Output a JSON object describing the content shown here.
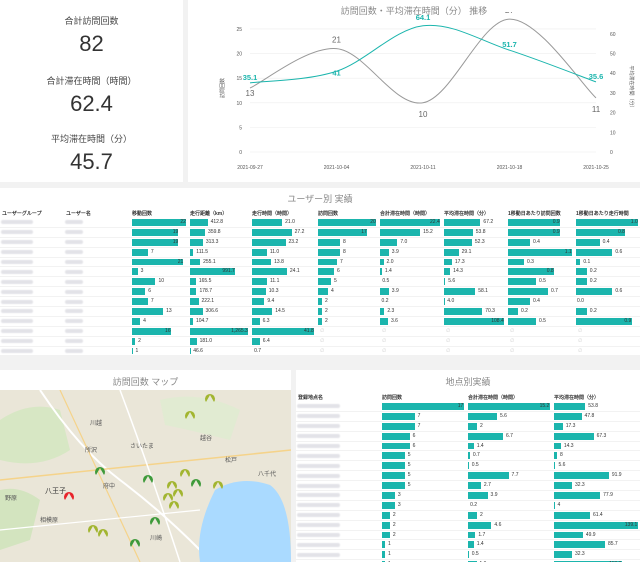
{
  "kpis": [
    {
      "label": "合計訪問回数",
      "value": "82"
    },
    {
      "label": "合計滞在時間（時間）",
      "value": "62.4"
    },
    {
      "label": "平均滞在時間（分）",
      "value": "45.7"
    }
  ],
  "trend_chart": {
    "title": "訪問回数・平均滞在時間（分） 推移",
    "y_left_label": "訪問回数",
    "y_right_label": "平均滞在時間（分）",
    "legend": [
      "訪問回数",
      "平均滞在時間（分）"
    ],
    "colors": {
      "visits": "#999999",
      "stay": "#1bb5ad"
    }
  },
  "chart_data": {
    "type": "line",
    "x": [
      "2021-09-27",
      "2021-10-04",
      "2021-10-11",
      "2021-10-18",
      "2021-10-25"
    ],
    "series": [
      {
        "name": "訪問回数",
        "values": [
          13,
          21,
          10,
          27,
          11
        ],
        "axis": "left"
      },
      {
        "name": "平均滞在時間（分）",
        "values": [
          35.1,
          41.0,
          64.1,
          51.7,
          35.6
        ],
        "axis": "right"
      }
    ],
    "y_left_ticks": [
      0,
      5,
      10,
      15,
      20,
      25
    ],
    "y_left_range": [
      0,
      26
    ],
    "y_right_ticks": [
      0,
      10,
      20,
      30,
      40,
      50,
      60
    ],
    "y_right_range": [
      0,
      65
    ],
    "legend_position": "bottom-center",
    "grid": true
  },
  "user_table": {
    "title": "ユーザー別 実績",
    "headers": [
      "ユーザーグループ",
      "ユーザー名",
      "移動回数",
      "走行距離（km）",
      "走行時間（時間）",
      "訪問回数",
      "合計滞在時間（時間）",
      "平均滞在時間（分）",
      "1移動日あたり訪問回数",
      "1移動日あたり走行時間"
    ],
    "rows": [
      {
        "c": [
          22,
          412.8,
          21.0,
          20,
          22.4,
          67.2,
          0.9,
          1.0
        ]
      },
      {
        "c": [
          19,
          359.8,
          27.2,
          17,
          15.2,
          53.8,
          0.9,
          0.8
        ]
      },
      {
        "c": [
          19,
          313.3,
          23.2,
          8,
          7.0,
          52.3,
          0.4,
          0.4
        ]
      },
      {
        "c": [
          7,
          111.5,
          11.0,
          8,
          3.9,
          29.1,
          1.1,
          0.6
        ]
      },
      {
        "c": [
          21,
          255.1,
          13.8,
          7,
          2.0,
          17.3,
          0.3,
          0.1
        ]
      },
      {
        "c": [
          3,
          991.7,
          24.1,
          6,
          1.4,
          14.3,
          0.8,
          0.2
        ]
      },
      {
        "c": [
          10,
          165.5,
          11.1,
          5,
          0.5,
          5.6,
          0.5,
          0.2
        ]
      },
      {
        "c": [
          6,
          178.7,
          10.3,
          4,
          3.9,
          58.1,
          0.7,
          0.6
        ]
      },
      {
        "c": [
          7,
          222.1,
          9.4,
          2,
          0.2,
          4.0,
          0.4,
          0.0
        ]
      },
      {
        "c": [
          13,
          306.6,
          14.5,
          2,
          2.3,
          70.3,
          0.2,
          0.2
        ]
      },
      {
        "c": [
          4,
          104.7,
          6.3,
          2,
          3.6,
          108.4,
          0.5,
          0.9
        ]
      },
      {
        "c": [
          16,
          "1,265.3",
          41.8,
          null,
          null,
          null,
          null,
          null
        ]
      },
      {
        "c": [
          2,
          181.0,
          6.4,
          null,
          null,
          null,
          null,
          null
        ]
      },
      {
        "c": [
          1,
          46.6,
          0.7,
          null,
          null,
          null,
          null,
          null
        ]
      },
      {
        "c": [
          1,
          10.6,
          0.8,
          null,
          null,
          null,
          null,
          null
        ]
      }
    ],
    "maxes": [
      22,
      1265.3,
      41.8,
      20,
      22.4,
      108.4,
      1.1,
      1.0
    ]
  },
  "map": {
    "title": "訪問回数 マップ",
    "labels": [
      "川越",
      "さいたま",
      "越谷",
      "所沢",
      "松戸",
      "八千代",
      "府中",
      "八王子",
      "相模原",
      "川崎",
      "野原"
    ]
  },
  "place_table": {
    "title": "地点別実績",
    "headers": [
      "登録地点名",
      "訪問回数",
      "合計滞在時間（時間）",
      "平均滞在時間（分）"
    ],
    "rows": [
      {
        "c": [
          17,
          15.2,
          53.8
        ]
      },
      {
        "c": [
          7,
          5.6,
          47.8
        ]
      },
      {
        "c": [
          7,
          2.0,
          17.3
        ]
      },
      {
        "c": [
          6,
          6.7,
          67.3
        ]
      },
      {
        "c": [
          6,
          1.4,
          14.3
        ]
      },
      {
        "c": [
          5,
          0.7,
          8.0
        ]
      },
      {
        "c": [
          5,
          0.5,
          5.6
        ]
      },
      {
        "c": [
          5,
          7.7,
          91.9
        ]
      },
      {
        "c": [
          5,
          2.7,
          32.3
        ]
      },
      {
        "c": [
          3,
          3.9,
          77.9
        ]
      },
      {
        "c": [
          3,
          0.2,
          4.0
        ]
      },
      {
        "c": [
          2,
          2.0,
          61.4
        ]
      },
      {
        "c": [
          2,
          4.6,
          139.1
        ]
      },
      {
        "c": [
          2,
          1.7,
          49.9
        ]
      },
      {
        "c": [
          1,
          1.4,
          85.7
        ]
      },
      {
        "c": [
          1,
          0.5,
          32.3
        ]
      },
      {
        "c": [
          1,
          1.9,
          113.3
        ]
      }
    ],
    "maxes": [
      17,
      15.2,
      139.1
    ]
  }
}
